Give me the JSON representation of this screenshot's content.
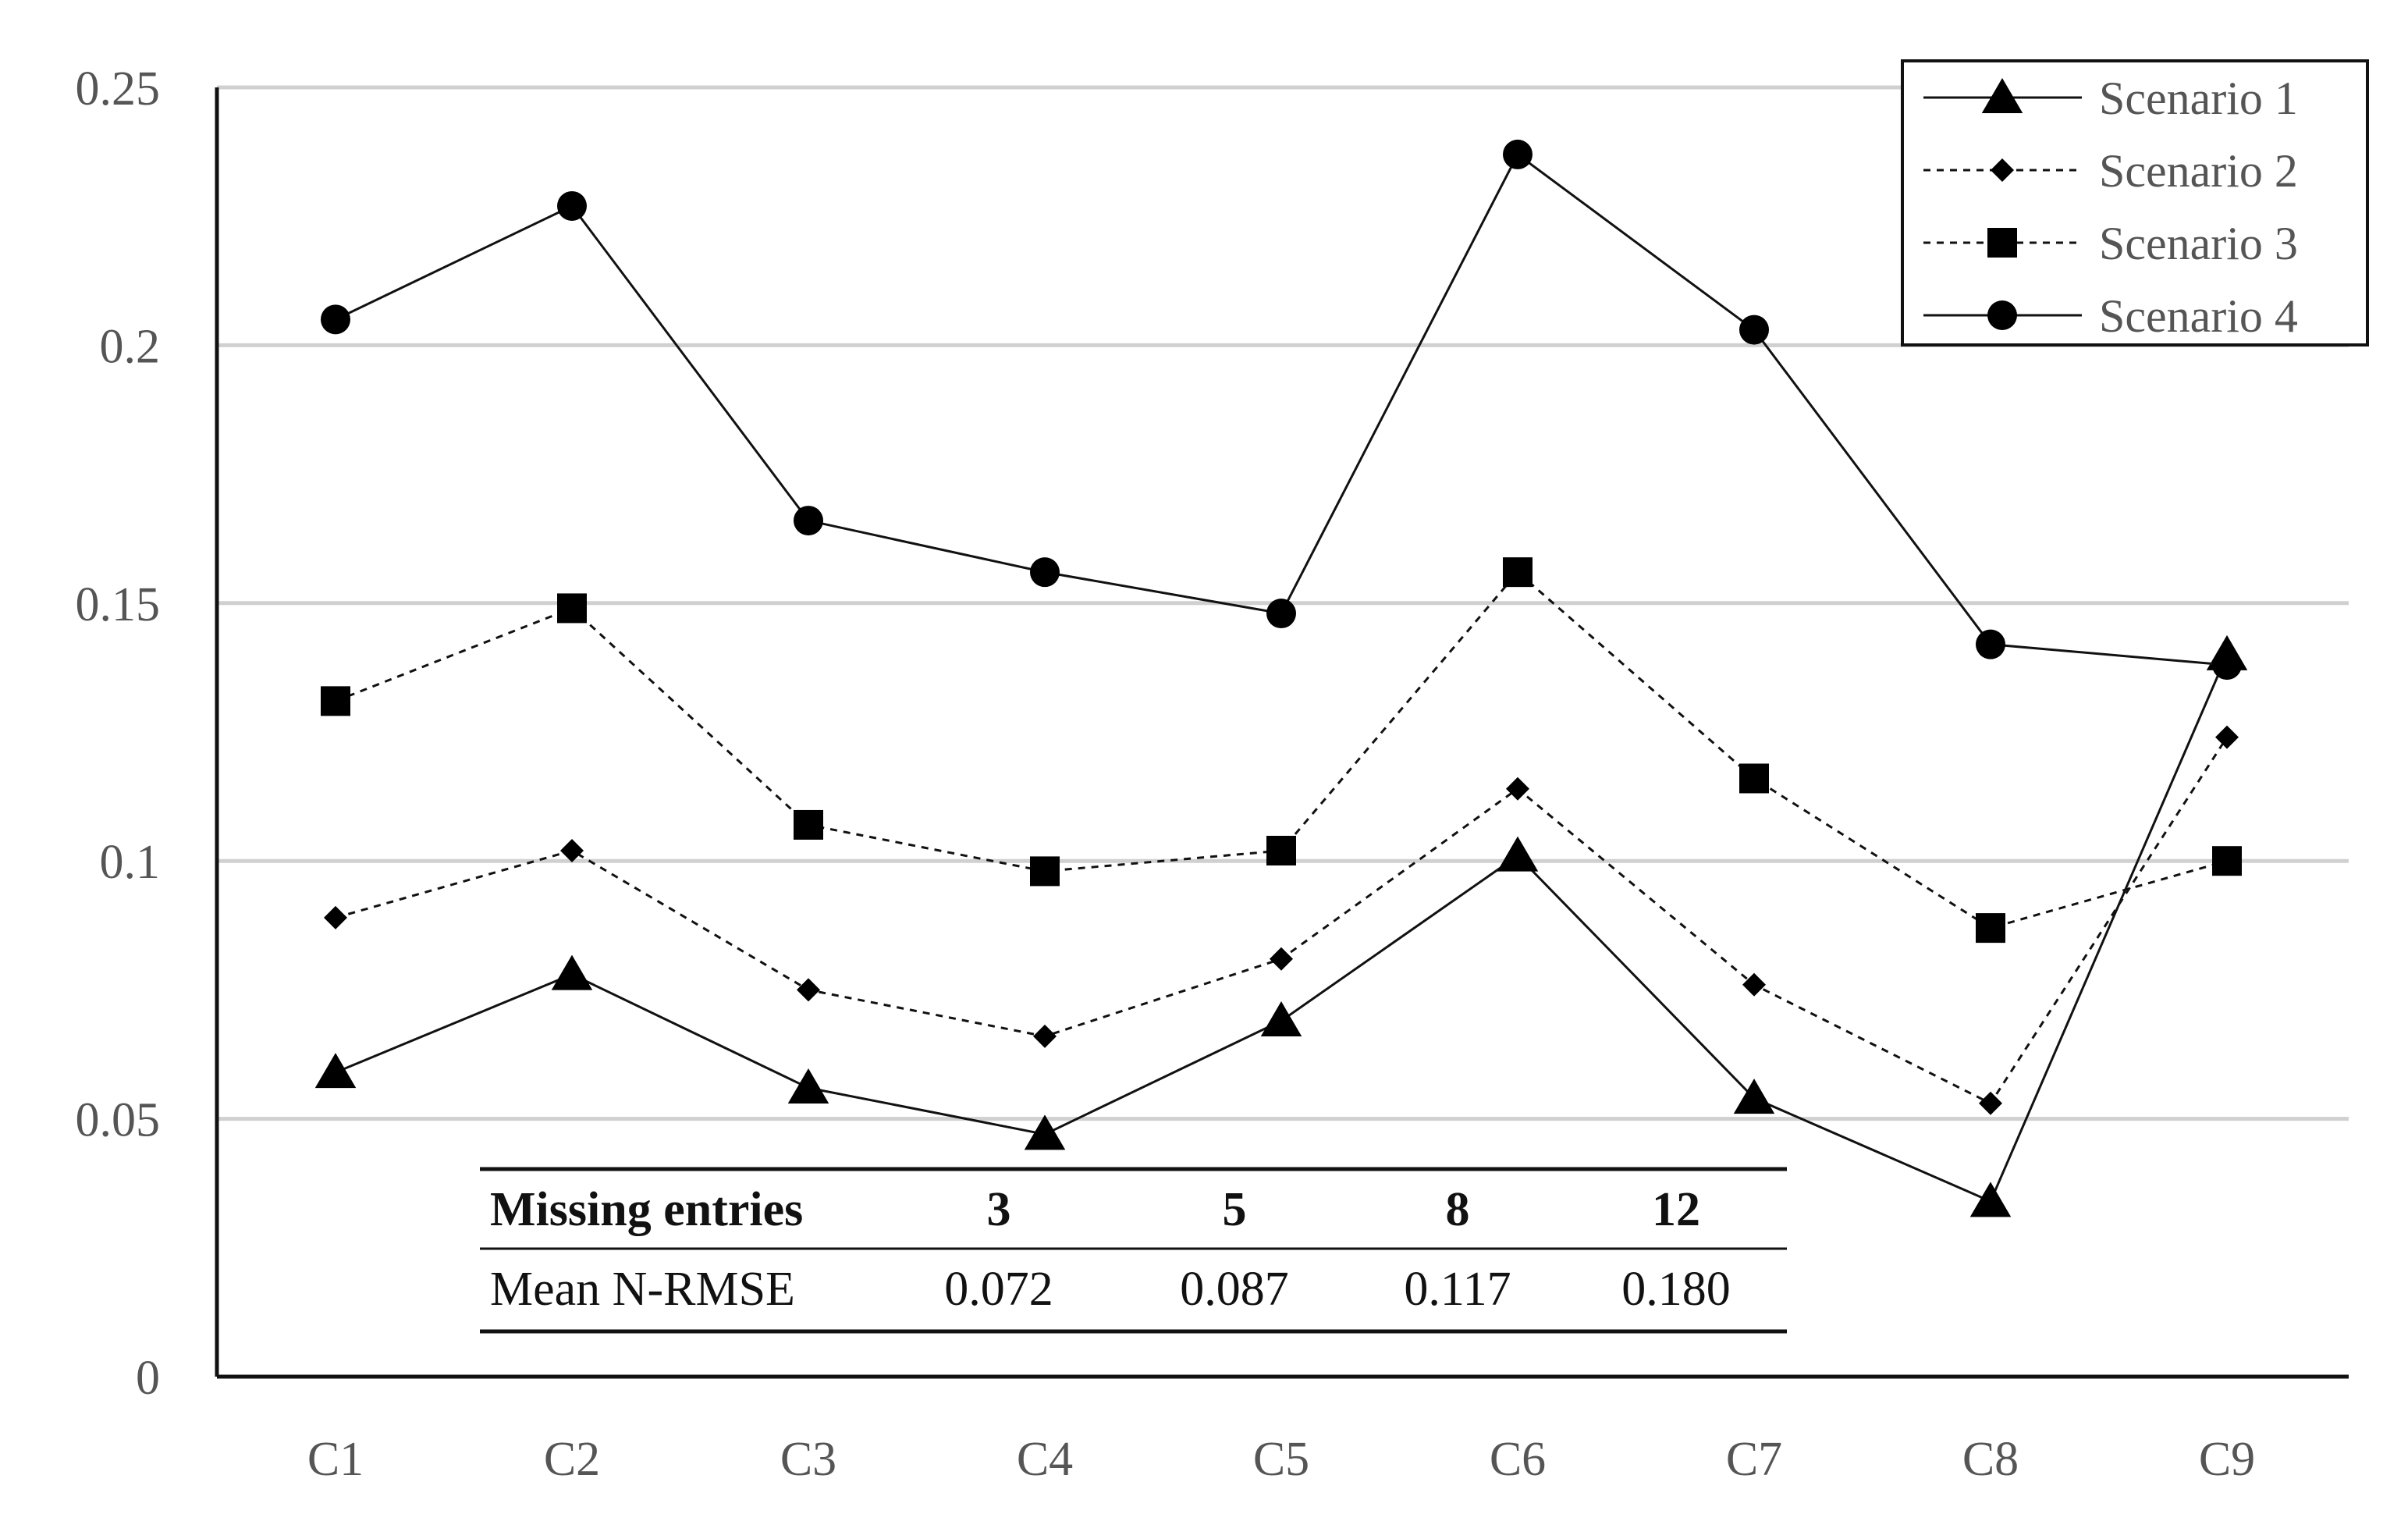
{
  "chart_data": {
    "type": "line",
    "title": "",
    "xlabel": "",
    "ylabel": "",
    "categories": [
      "C1",
      "C2",
      "C3",
      "C4",
      "C5",
      "C6",
      "C7",
      "C8",
      "C9"
    ],
    "ylim": [
      0,
      0.25
    ],
    "yticks": [
      "0",
      "0.05",
      "0.1",
      "0.15",
      "0.2",
      "0.25"
    ],
    "grid": "horizontal",
    "legend_position": "top-right",
    "series": [
      {
        "name": "Scenario 1",
        "marker": "triangle",
        "line": "solid",
        "values": [
          0.059,
          0.078,
          0.056,
          0.047,
          0.069,
          0.101,
          0.054,
          0.034,
          0.14
        ]
      },
      {
        "name": "Scenario 2",
        "marker": "diamond",
        "line": "dashed",
        "values": [
          0.089,
          0.102,
          0.075,
          0.066,
          0.081,
          0.114,
          0.076,
          0.053,
          0.124
        ]
      },
      {
        "name": "Scenario 3",
        "marker": "square",
        "line": "dashed",
        "values": [
          0.131,
          0.149,
          0.107,
          0.098,
          0.102,
          0.156,
          0.116,
          0.087,
          0.1
        ]
      },
      {
        "name": "Scenario 4",
        "marker": "circle",
        "line": "solid",
        "values": [
          0.205,
          0.227,
          0.166,
          0.156,
          0.148,
          0.237,
          0.203,
          0.142,
          0.138
        ]
      }
    ],
    "inset_table": {
      "header": [
        "Missing entries",
        "3",
        "5",
        "8",
        "12"
      ],
      "row": [
        "Mean N-RMSE",
        "0.072",
        "0.087",
        "0.117",
        "0.180"
      ]
    }
  }
}
